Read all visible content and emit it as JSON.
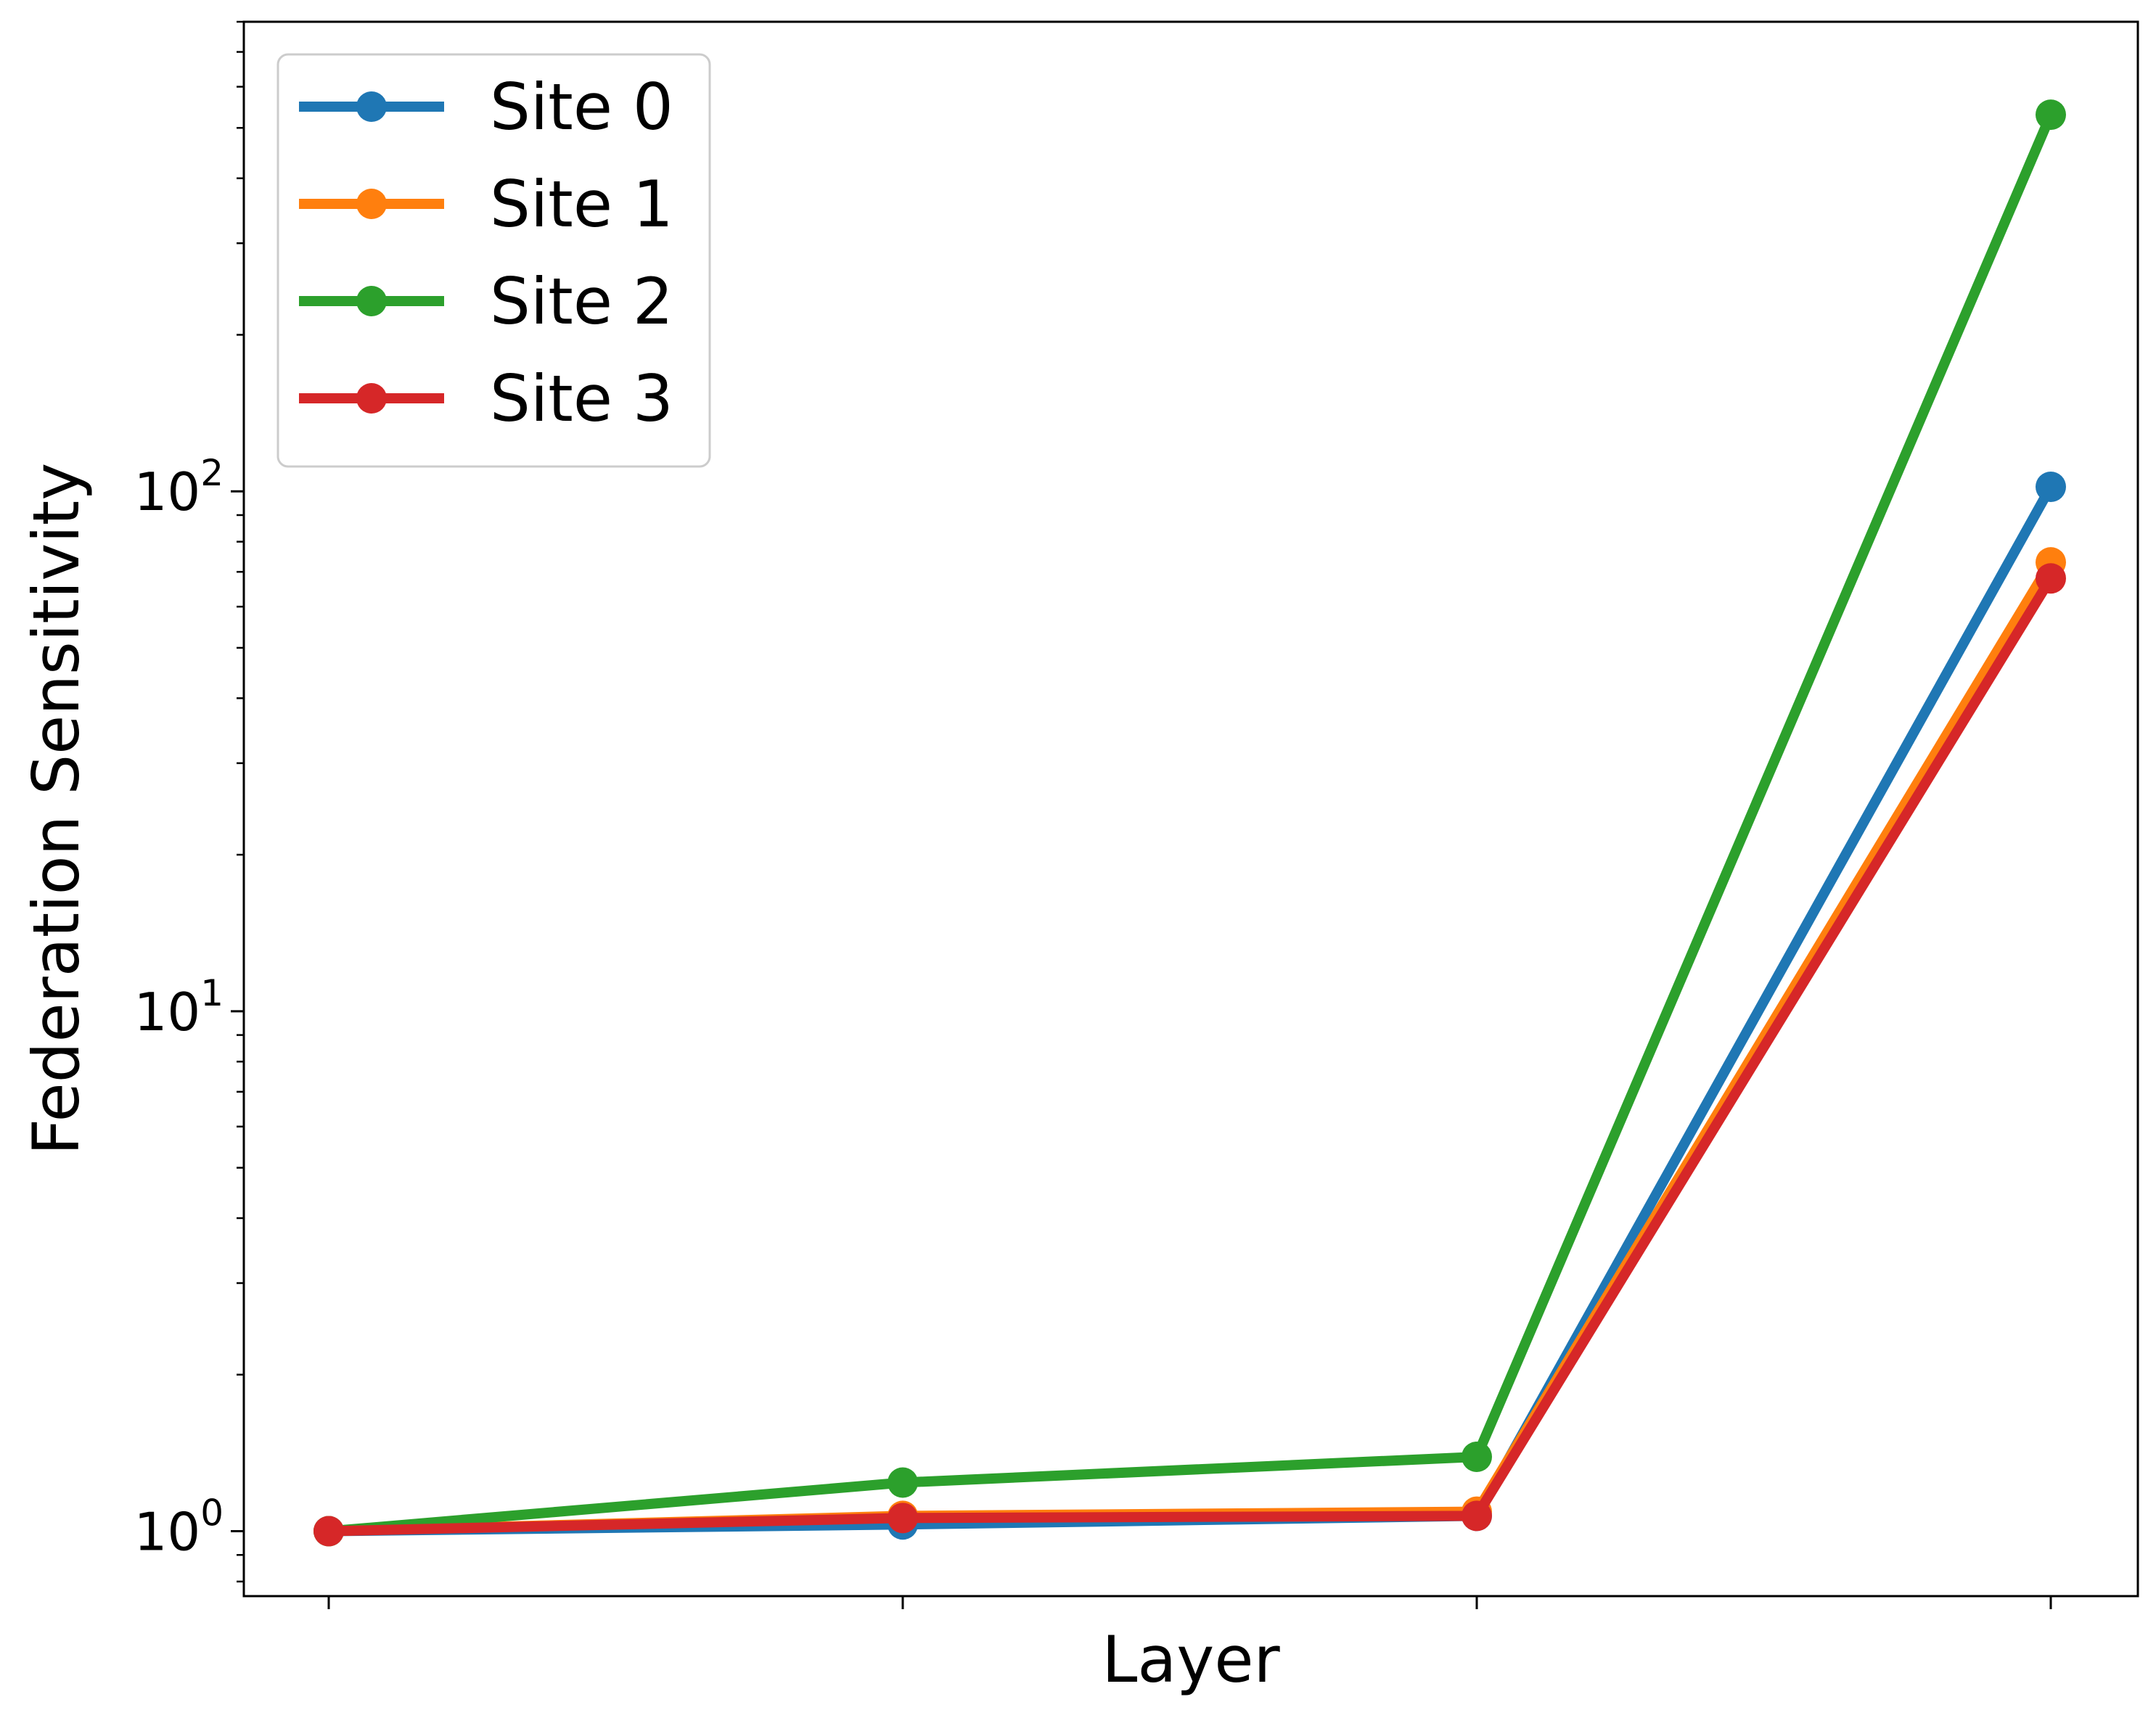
{
  "chart_data": {
    "type": "line",
    "title": "",
    "xlabel": "Layer",
    "ylabel": "Federation Sensitivity",
    "yscale": "log",
    "ylim": [
      0.75,
      800
    ],
    "x": [
      0,
      1,
      2,
      3
    ],
    "x_tick_labels": [
      "",
      "",
      "",
      ""
    ],
    "y_ticks": [
      {
        "value": 1,
        "base": "10",
        "exp": "0"
      },
      {
        "value": 10,
        "base": "10",
        "exp": "1"
      },
      {
        "value": 100,
        "base": "10",
        "exp": "2"
      }
    ],
    "grid": false,
    "legend_position": "top-left",
    "series": [
      {
        "name": "Site 0",
        "color": "#1f77b4",
        "values": [
          1.0,
          1.03,
          1.07,
          102
        ]
      },
      {
        "name": "Site 1",
        "color": "#ff7f0e",
        "values": [
          1.0,
          1.07,
          1.09,
          73
        ]
      },
      {
        "name": "Site 2",
        "color": "#2ca02c",
        "values": [
          1.0,
          1.24,
          1.39,
          530
        ]
      },
      {
        "name": "Site 3",
        "color": "#d62728",
        "values": [
          1.0,
          1.06,
          1.07,
          68
        ]
      }
    ]
  }
}
